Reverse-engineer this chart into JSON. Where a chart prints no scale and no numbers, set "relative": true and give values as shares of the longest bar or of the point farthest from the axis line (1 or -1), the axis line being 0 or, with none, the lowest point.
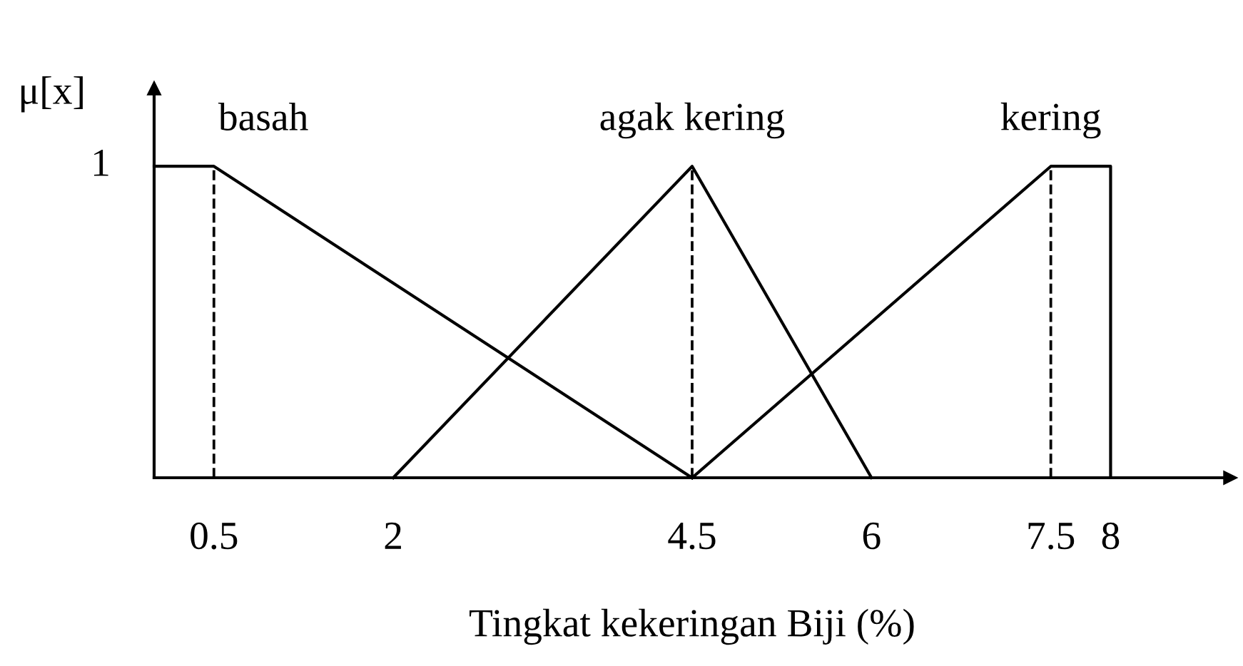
{
  "chart_data": {
    "type": "line",
    "relative": true,
    "xlabel": "Tingkat kekeringan Biji (%)",
    "ylabel": "μ[x]",
    "xlim": [
      0,
      9
    ],
    "xticks": [
      0.5,
      2,
      4.5,
      6,
      7.5,
      8
    ],
    "line_style": "solid",
    "series": [
      {
        "name": "basah",
        "color": "#000000",
        "x": [
          0,
          0.5,
          4.5
        ],
        "values": [
          1,
          1,
          0
        ]
      },
      {
        "name": "agak kering",
        "color": "#000000",
        "x": [
          2,
          4.5,
          6
        ],
        "values": [
          0,
          1,
          0
        ]
      },
      {
        "name": "kering",
        "color": "#000000",
        "x": [
          4.5,
          7.5,
          8,
          8
        ],
        "values": [
          0,
          1,
          1,
          0
        ]
      }
    ],
    "ref_lines": [
      {
        "axis": "x",
        "value": 0.5,
        "color": "#000000",
        "line_style": "dashed"
      },
      {
        "axis": "x",
        "value": 4.5,
        "color": "#000000",
        "line_style": "dashed"
      },
      {
        "axis": "x",
        "value": 7.5,
        "color": "#000000",
        "line_style": "dashed"
      }
    ],
    "annotations": [
      "1"
    ]
  }
}
